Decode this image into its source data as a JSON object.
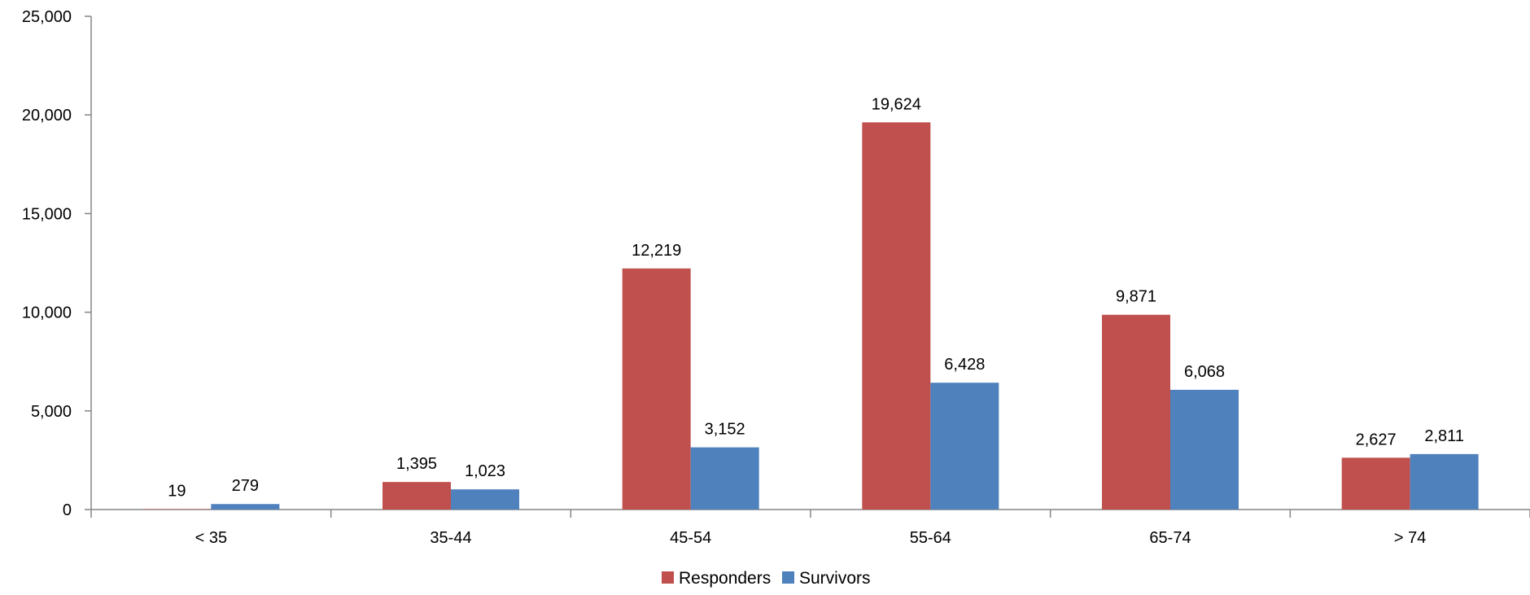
{
  "chart_data": {
    "type": "bar",
    "title": "",
    "xlabel": "",
    "ylabel": "",
    "categories": [
      "< 35",
      "35-44",
      "45-54",
      "55-64",
      "65-74",
      "> 74"
    ],
    "series": [
      {
        "name": "Responders",
        "color": "#C0504D",
        "values": [
          19,
          1395,
          12219,
          19624,
          9871,
          2627
        ]
      },
      {
        "name": "Survivors",
        "color": "#4F81BD",
        "values": [
          279,
          1023,
          3152,
          6428,
          6068,
          2811
        ]
      }
    ],
    "ylim": [
      0,
      25000
    ],
    "yticks": [
      0,
      5000,
      10000,
      15000,
      20000,
      25000
    ],
    "grid": false,
    "legend_position": "bottom"
  }
}
